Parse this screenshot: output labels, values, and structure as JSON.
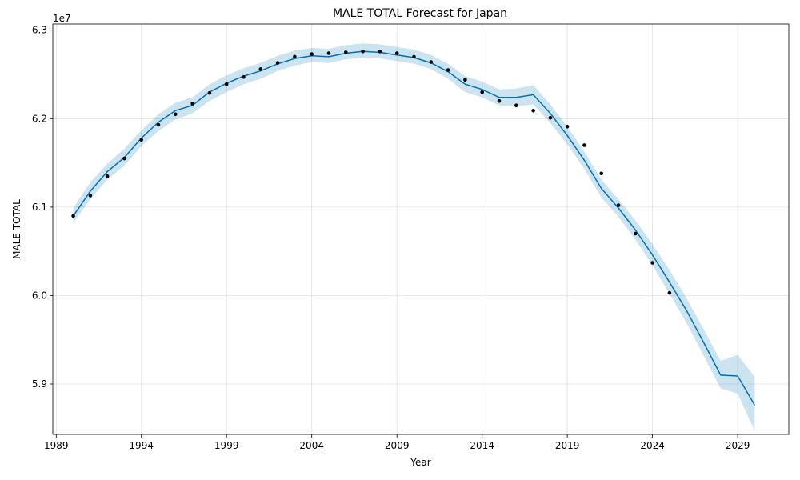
{
  "chart_data": {
    "type": "line",
    "title": "MALE TOTAL Forecast for Japan",
    "xlabel": "Year",
    "ylabel": "MALE TOTAL",
    "y_offset_label": "1e7",
    "xlim": [
      1988.8,
      2032.0
    ],
    "ylim": [
      58430000,
      63070000
    ],
    "x_ticks": [
      1989,
      1994,
      1999,
      2004,
      2009,
      2014,
      2019,
      2024,
      2029
    ],
    "x_tick_labels": [
      "1989",
      "1994",
      "1999",
      "2004",
      "2009",
      "2014",
      "2019",
      "2024",
      "2029"
    ],
    "y_ticks": [
      59000000,
      60000000,
      61000000,
      62000000,
      63000000
    ],
    "y_tick_labels": [
      "5.9",
      "6.0",
      "6.1",
      "6.2",
      "6.3"
    ],
    "grid": true,
    "colors": {
      "forecast_line": "#0072b2",
      "uncertainty_band": "#0072b2",
      "actual_points": "#000000"
    },
    "series": [
      {
        "kind": "forecast",
        "x": [
          1990,
          1991,
          1992,
          1993,
          1994,
          1995,
          1996,
          1997,
          1998,
          1999,
          2000,
          2001,
          2002,
          2003,
          2004,
          2005,
          2006,
          2007,
          2008,
          2009,
          2010,
          2011,
          2012,
          2013,
          2014,
          2015,
          2016,
          2017,
          2018,
          2019,
          2020,
          2021,
          2022,
          2023,
          2024,
          2025,
          2026,
          2027,
          2028,
          2029,
          2030
        ],
        "y": [
          60900000,
          61180000,
          61400000,
          61560000,
          61780000,
          61960000,
          62090000,
          62150000,
          62300000,
          62400000,
          62480000,
          62540000,
          62620000,
          62680000,
          62710000,
          62700000,
          62740000,
          62760000,
          62750000,
          62720000,
          62690000,
          62630000,
          62530000,
          62390000,
          62330000,
          62240000,
          62240000,
          62270000,
          62060000,
          61810000,
          61530000,
          61210000,
          60990000,
          60740000,
          60460000,
          60150000,
          59830000,
          59470000,
          59100000,
          59090000,
          58760000
        ],
        "y_lower": [
          60820000,
          61090000,
          61310000,
          61470000,
          61690000,
          61860000,
          61990000,
          62060000,
          62200000,
          62300000,
          62390000,
          62450000,
          62540000,
          62600000,
          62640000,
          62630000,
          62670000,
          62690000,
          62680000,
          62650000,
          62620000,
          62560000,
          62450000,
          62300000,
          62240000,
          62150000,
          62140000,
          62160000,
          61950000,
          61710000,
          61430000,
          61110000,
          60890000,
          60630000,
          60340000,
          60020000,
          59690000,
          59320000,
          58950000,
          58890000,
          58470000
        ],
        "y_upper": [
          60990000,
          61280000,
          61490000,
          61660000,
          61870000,
          62050000,
          62180000,
          62240000,
          62390000,
          62490000,
          62570000,
          62630000,
          62710000,
          62770000,
          62800000,
          62790000,
          62830000,
          62850000,
          62840000,
          62810000,
          62780000,
          62720000,
          62620000,
          62480000,
          62420000,
          62330000,
          62340000,
          62380000,
          62160000,
          61910000,
          61630000,
          61310000,
          61090000,
          60850000,
          60580000,
          60290000,
          59970000,
          59620000,
          59260000,
          59330000,
          59080000
        ]
      },
      {
        "kind": "actual",
        "x": [
          1990,
          1991,
          1992,
          1993,
          1994,
          1995,
          1996,
          1997,
          1998,
          1999,
          2000,
          2001,
          2002,
          2003,
          2004,
          2005,
          2006,
          2007,
          2008,
          2009,
          2010,
          2011,
          2012,
          2013,
          2014,
          2015,
          2016,
          2017,
          2018,
          2019,
          2020,
          2021,
          2022,
          2023,
          2024,
          2025
        ],
        "y": [
          60900000,
          61130000,
          61350000,
          61550000,
          61760000,
          61930000,
          62050000,
          62170000,
          62290000,
          62390000,
          62470000,
          62560000,
          62630000,
          62700000,
          62730000,
          62740000,
          62750000,
          62760000,
          62760000,
          62740000,
          62700000,
          62640000,
          62550000,
          62440000,
          62300000,
          62200000,
          62150000,
          62090000,
          62010000,
          61910000,
          61700000,
          61380000,
          61020000,
          60700000,
          60370000,
          60030000
        ]
      }
    ]
  }
}
